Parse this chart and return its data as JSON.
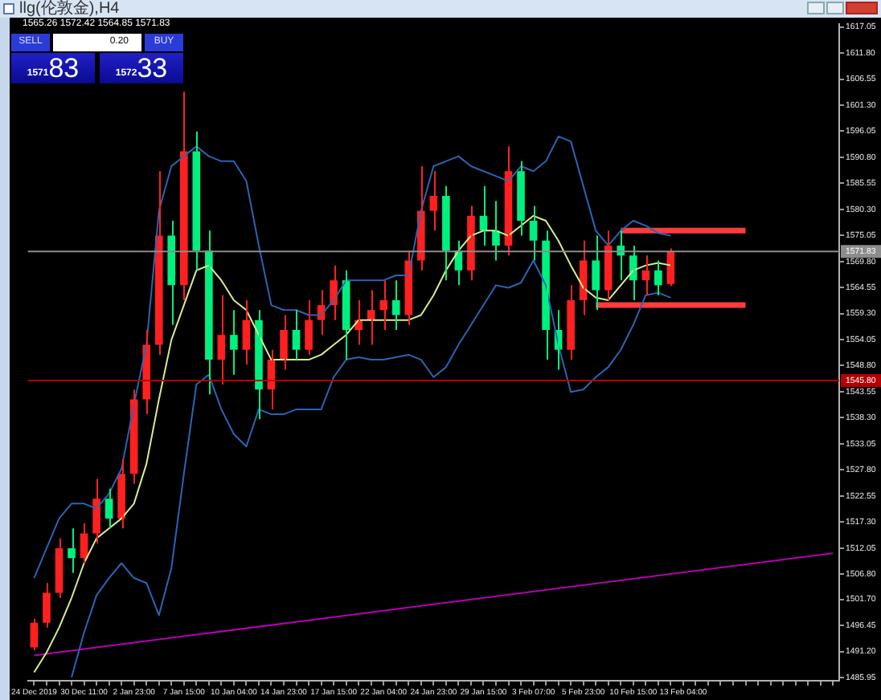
{
  "chart_data": {
    "type": "candlestick",
    "title": "llg(伦敦金),H4",
    "categories": [
      "24 Dec 2019",
      null,
      null,
      null,
      "30 Dec 11:00",
      null,
      null,
      null,
      "2 Jan 23:00",
      null,
      null,
      null,
      "7 Jan 15:00",
      null,
      null,
      null,
      "10 Jan 04:00",
      null,
      null,
      null,
      "14 Jan 23:00",
      null,
      null,
      null,
      "17 Jan 15:00",
      null,
      null,
      null,
      "22 Jan 04:00",
      null,
      null,
      null,
      "24 Jan 23:00",
      null,
      null,
      null,
      "29 Jan 15:00",
      null,
      null,
      null,
      "3 Feb 07:00",
      null,
      null,
      null,
      "5 Feb 23:00",
      null,
      null,
      null,
      "10 Feb 15:00",
      null,
      null,
      null,
      "13 Feb 04:00",
      null,
      null,
      null,
      null,
      null,
      null,
      null,
      null,
      null,
      null,
      null,
      null
    ],
    "ohlc": [
      [
        1492,
        1497.8,
        1491.4,
        1497
      ],
      [
        1497,
        1505,
        1496,
        1503
      ],
      [
        1503,
        1514,
        1502,
        1512
      ],
      [
        1512,
        1516,
        1507,
        1510
      ],
      [
        1510,
        1517,
        1509,
        1515
      ],
      [
        1515,
        1526,
        1513,
        1522
      ],
      [
        1522,
        1524,
        1516,
        1518
      ],
      [
        1518,
        1530,
        1516,
        1527
      ],
      [
        1527,
        1544,
        1525,
        1542
      ],
      [
        1542,
        1556,
        1539,
        1553
      ],
      [
        1553,
        1588,
        1551,
        1575
      ],
      [
        1575,
        1578,
        1557,
        1565
      ],
      [
        1565,
        1604,
        1562,
        1592
      ],
      [
        1592,
        1596,
        1568,
        1572
      ],
      [
        1572,
        1576,
        1543,
        1550
      ],
      [
        1550,
        1563,
        1545,
        1555
      ],
      [
        1555,
        1560,
        1547,
        1552
      ],
      [
        1552,
        1562,
        1549,
        1558
      ],
      [
        1558,
        1560,
        1538,
        1544
      ],
      [
        1544,
        1552,
        1540,
        1550
      ],
      [
        1550,
        1559,
        1548,
        1556
      ],
      [
        1556,
        1560,
        1550,
        1552
      ],
      [
        1552,
        1562,
        1551,
        1558
      ],
      [
        1558,
        1564,
        1555,
        1561
      ],
      [
        1561,
        1569,
        1558,
        1566
      ],
      [
        1566,
        1568,
        1550,
        1556
      ],
      [
        1556,
        1562,
        1553,
        1558
      ],
      [
        1558,
        1564,
        1553,
        1560
      ],
      [
        1560,
        1566,
        1556,
        1562
      ],
      [
        1562,
        1566,
        1556,
        1559
      ],
      [
        1559,
        1572,
        1557,
        1570
      ],
      [
        1570,
        1589,
        1568,
        1580
      ],
      [
        1580,
        1588,
        1576,
        1583
      ],
      [
        1583,
        1585,
        1566,
        1572
      ],
      [
        1572,
        1574,
        1565,
        1568
      ],
      [
        1568,
        1581,
        1566,
        1579
      ],
      [
        1579,
        1585,
        1573,
        1576
      ],
      [
        1576,
        1582,
        1570,
        1573
      ],
      [
        1573,
        1593,
        1571,
        1588
      ],
      [
        1588,
        1590,
        1575,
        1578
      ],
      [
        1578,
        1581,
        1570,
        1574
      ],
      [
        1574,
        1576,
        1550,
        1556
      ],
      [
        1556,
        1560,
        1548,
        1552
      ],
      [
        1552,
        1565,
        1550,
        1562
      ],
      [
        1562,
        1574,
        1559,
        1570
      ],
      [
        1570,
        1575,
        1560,
        1564
      ],
      [
        1564,
        1576,
        1562,
        1573
      ],
      [
        1573,
        1576,
        1566,
        1571
      ],
      [
        1571,
        1573,
        1562,
        1566
      ],
      [
        1566,
        1571,
        1563,
        1568
      ],
      [
        1568,
        1570,
        1563,
        1565
      ],
      [
        1565.26,
        1572.42,
        1564.85,
        1571.83
      ],
      null,
      null,
      null,
      null,
      null,
      null,
      null,
      null,
      null,
      null,
      null,
      null,
      null
    ],
    "series": [
      {
        "type": "line",
        "color": "#2a64b4",
        "values": [
          1506,
          1512,
          1518,
          1521,
          1521,
          1520,
          1523,
          1528,
          1541,
          1553,
          1580,
          1589,
          1591,
          1593,
          1591,
          1590,
          1590,
          1586,
          1573,
          1561,
          1560,
          1560,
          1559,
          1559,
          1562,
          1566,
          1566,
          1566,
          1566,
          1567,
          1567,
          1580,
          1589,
          1590,
          1591,
          1589,
          1588,
          1587,
          1586,
          1589,
          1588,
          1590,
          1595,
          1594,
          1585,
          1576,
          1573,
          1576,
          1578,
          1577,
          1575.5,
          1575,
          null,
          null,
          null,
          null,
          null,
          null,
          null,
          null,
          null,
          null,
          null,
          null,
          null
        ]
      },
      {
        "type": "line",
        "color": "#d8ee8c",
        "values": [
          1487,
          1491,
          1496,
          1502,
          1509,
          1514,
          1516,
          1518,
          1521,
          1529,
          1542,
          1554,
          1561,
          1568,
          1569,
          1566,
          1562,
          1560,
          1555,
          1550,
          1550,
          1550,
          1550,
          1551,
          1553,
          1555,
          1558,
          1558,
          1558,
          1558,
          1558,
          1559,
          1563,
          1568,
          1572,
          1575,
          1576,
          1576,
          1575,
          1577,
          1579,
          1578,
          1574,
          1569,
          1564.5,
          1562.5,
          1562,
          1565,
          1568,
          1569,
          1569.5,
          1569,
          null,
          null,
          null,
          null,
          null,
          null,
          null,
          null,
          null,
          null,
          null,
          null,
          null
        ]
      },
      {
        "type": "line",
        "color": "#2a64b4",
        "values": [
          null,
          null,
          null,
          1486,
          1495,
          1502.5,
          1506,
          1509,
          1506,
          1505,
          1498.5,
          1508,
          1527,
          1545,
          1547,
          1540,
          1535,
          1532.5,
          1540,
          1539,
          1539,
          1540,
          1540,
          1540,
          1546.5,
          1550,
          1550.5,
          1550,
          1550,
          1550.5,
          1551,
          1550,
          1546.5,
          1548.5,
          1553,
          1557,
          1561,
          1565,
          1564.5,
          1565.5,
          1570,
          1565,
          1553,
          1543.5,
          1544,
          1546.5,
          1548.5,
          1552,
          1557,
          1563,
          1563.5,
          1562.5,
          null,
          null,
          null,
          null,
          null,
          null,
          null,
          null,
          null,
          null,
          null,
          null,
          null
        ]
      },
      {
        "type": "line",
        "color": "#b400b4",
        "values": [
          1490.4,
          null,
          null,
          null,
          null,
          null,
          null,
          null,
          null,
          null,
          null,
          null,
          null,
          null,
          null,
          null,
          null,
          null,
          null,
          null,
          null,
          null,
          null,
          null,
          null,
          null,
          null,
          null,
          null,
          null,
          null,
          null,
          null,
          null,
          null,
          null,
          null,
          null,
          null,
          null,
          null,
          null,
          null,
          null,
          null,
          null,
          null,
          null,
          null,
          null,
          null,
          null,
          null,
          null,
          null,
          null,
          null,
          null,
          null,
          null,
          null,
          null,
          null,
          null,
          1511
        ]
      },
      {
        "type": "line",
        "color": "#ff3b3b",
        "values": [
          null,
          null,
          null,
          null,
          null,
          null,
          null,
          null,
          null,
          null,
          null,
          null,
          null,
          null,
          null,
          null,
          null,
          null,
          null,
          null,
          null,
          null,
          null,
          null,
          null,
          null,
          null,
          null,
          null,
          null,
          null,
          null,
          null,
          null,
          null,
          null,
          null,
          null,
          null,
          null,
          null,
          null,
          null,
          null,
          null,
          null,
          null,
          1576,
          1576,
          1576,
          1576,
          1576,
          1576,
          1576,
          1576,
          1576,
          1576,
          1576,
          null,
          null,
          null,
          null,
          null,
          null,
          null
        ]
      },
      {
        "type": "line",
        "color": "#ff3b3b",
        "values": [
          null,
          null,
          null,
          null,
          null,
          null,
          null,
          null,
          null,
          null,
          null,
          null,
          null,
          null,
          null,
          null,
          null,
          null,
          null,
          null,
          null,
          null,
          null,
          null,
          null,
          null,
          null,
          null,
          null,
          null,
          null,
          null,
          null,
          null,
          null,
          null,
          null,
          null,
          null,
          null,
          null,
          null,
          null,
          null,
          null,
          1561,
          1561,
          1561,
          1561,
          1561,
          1561,
          1561,
          1561,
          1561,
          1561,
          1561,
          1561,
          1561,
          null,
          null,
          null,
          null,
          null,
          null,
          null
        ]
      }
    ],
    "ylim": [
      1485.3,
      1617.6
    ],
    "yticks": [
      1617.05,
      {
        "value": 1611.8,
        "label": "1611.80"
      },
      1606.55,
      {
        "value": 1601.3,
        "label": "1601.30"
      },
      1596.05,
      {
        "value": 1590.8,
        "label": "1590.80"
      },
      1585.55,
      {
        "value": 1580.3,
        "label": "1580.30"
      },
      1575.05,
      {
        "value": 1569.8,
        "label": "1569.80"
      },
      1564.55,
      {
        "value": 1559.3,
        "label": "1559.30"
      },
      1554.05,
      {
        "value": 1548.8,
        "label": "1548.80"
      },
      1543.55,
      {
        "value": 1538.3,
        "label": "1538.30"
      },
      1533.05,
      {
        "value": 1527.8,
        "label": "1527.80"
      },
      1522.55,
      {
        "value": 1517.3,
        "label": "1517.30"
      },
      1512.05,
      {
        "value": 1506.8,
        "label": "1506.80"
      },
      {
        "value": 1501.7,
        "label": "1501.70"
      },
      1496.45,
      {
        "value": 1491.2,
        "label": "1491.20"
      },
      1485.95
    ],
    "ref_lines": [
      {
        "axis": "y",
        "value": 1571.83,
        "label": "1571.83",
        "color": "#8c8c8c"
      },
      {
        "axis": "y",
        "value": 1545.8,
        "label": "1545.80",
        "color": "#b40000"
      }
    ],
    "annotations": [
      "1565.26 1572.42 1564.85 1571.83",
      "SELL",
      "0.20",
      "BUY",
      "1571",
      "83",
      "1572",
      "33"
    ],
    "grid": false,
    "legend": false,
    "marker": "none"
  }
}
